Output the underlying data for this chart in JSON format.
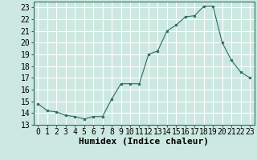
{
  "x": [
    0,
    1,
    2,
    3,
    4,
    5,
    6,
    7,
    8,
    9,
    10,
    11,
    12,
    13,
    14,
    15,
    16,
    17,
    18,
    19,
    20,
    21,
    22,
    23
  ],
  "y": [
    14.8,
    14.2,
    14.1,
    13.8,
    13.7,
    13.5,
    13.7,
    13.7,
    15.2,
    16.5,
    16.5,
    16.5,
    19.0,
    19.3,
    21.0,
    21.5,
    22.2,
    22.3,
    23.1,
    23.1,
    20.0,
    18.5,
    17.5,
    17.0
  ],
  "line_color": "#2e6b5e",
  "marker": "o",
  "marker_size": 2,
  "bg_color": "#cce8e0",
  "grid_color": "#ffffff",
  "grid_minor_color": "#e8f5f0",
  "xlabel": "Humidex (Indice chaleur)",
  "ylabel_ticks": [
    13,
    14,
    15,
    16,
    17,
    18,
    19,
    20,
    21,
    22,
    23
  ],
  "xlim": [
    -0.5,
    23.5
  ],
  "ylim": [
    13,
    23.5
  ],
  "xlabel_fontsize": 8,
  "tick_fontsize": 7
}
